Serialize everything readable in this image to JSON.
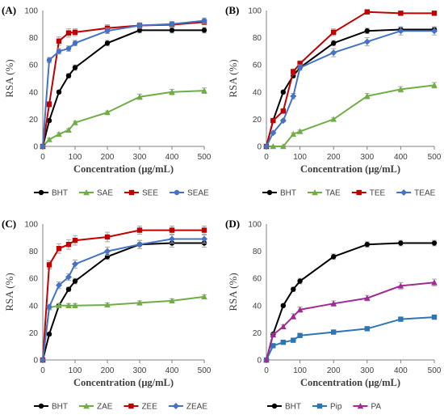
{
  "chart_data": [
    {
      "type": "line",
      "panel_label": "(A)",
      "x": [
        0,
        20,
        50,
        80,
        100,
        200,
        300,
        400,
        500
      ],
      "xlabel": "Concentration (μg/mL)",
      "ylabel": "RSA (%)",
      "xlim": [
        0,
        500
      ],
      "ylim": [
        0,
        100
      ],
      "xticks": [
        "0",
        "100",
        "200",
        "300",
        "400",
        "500"
      ],
      "yticks": [
        "0",
        "20",
        "40",
        "60",
        "80",
        "100"
      ],
      "grid": false,
      "legend_position": "bottom",
      "series": [
        {
          "name": "BHT",
          "color": "#000000",
          "marker": "circle",
          "values": [
            0,
            19,
            40,
            52,
            58,
            76,
            85.5,
            85.5,
            85.5
          ],
          "errors": [
            0,
            1,
            1,
            1.5,
            2,
            2,
            2,
            2,
            2
          ]
        },
        {
          "name": "SAE",
          "color": "#70ad47",
          "marker": "triangle",
          "values": [
            0,
            5,
            9,
            12,
            17.5,
            25,
            36.5,
            40,
            41
          ],
          "errors": [
            0,
            1,
            1,
            1,
            1,
            1,
            2,
            2,
            2
          ]
        },
        {
          "name": "SEE",
          "color": "#c00000",
          "marker": "square",
          "values": [
            0,
            31,
            77.5,
            83.5,
            84,
            87,
            89,
            89.5,
            91.5
          ],
          "errors": [
            0,
            2,
            3,
            3,
            2.5,
            2.5,
            2,
            2,
            2
          ]
        },
        {
          "name": "SEAE",
          "color": "#4472c4",
          "marker": "circle",
          "values": [
            0,
            63.5,
            70,
            72,
            76,
            85,
            89,
            90,
            92.5
          ],
          "errors": [
            0,
            2,
            2,
            2,
            2,
            2,
            2,
            2,
            2
          ]
        }
      ]
    },
    {
      "type": "line",
      "panel_label": "(B)",
      "x": [
        0,
        20,
        50,
        80,
        100,
        200,
        300,
        400,
        500
      ],
      "xlabel": "Concentration (μg/mL)",
      "ylabel": "RSA (%)",
      "xlim": [
        0,
        500
      ],
      "ylim": [
        0,
        100
      ],
      "xticks": [
        "0",
        "100",
        "200",
        "300",
        "400",
        "500"
      ],
      "yticks": [
        "0",
        "20",
        "40",
        "60",
        "80",
        "100"
      ],
      "grid": false,
      "legend_position": "bottom",
      "series": [
        {
          "name": "BHT",
          "color": "#000000",
          "marker": "circle",
          "values": [
            0,
            19,
            40,
            52,
            58,
            76,
            85,
            86,
            86
          ],
          "errors": [
            0,
            1,
            1,
            1.5,
            2,
            2,
            2,
            2,
            2
          ]
        },
        {
          "name": "TAE",
          "color": "#70ad47",
          "marker": "triangle",
          "values": [
            0,
            0,
            0,
            9,
            11,
            20,
            37,
            42,
            45
          ],
          "errors": [
            0,
            0.5,
            0.5,
            1,
            1,
            1,
            2,
            2,
            2
          ]
        },
        {
          "name": "TEE",
          "color": "#c00000",
          "marker": "square",
          "values": [
            0,
            19,
            26,
            55,
            61,
            84,
            99,
            98,
            98
          ],
          "errors": [
            0,
            1,
            1.5,
            2,
            2,
            2.5,
            1.5,
            1,
            1
          ]
        },
        {
          "name": "TEAE",
          "color": "#4472c4",
          "marker": "diamond",
          "values": [
            0,
            10,
            19,
            37,
            58,
            69,
            77,
            85,
            85
          ],
          "errors": [
            0,
            1,
            1,
            2,
            2,
            3,
            3,
            3,
            3
          ]
        }
      ]
    },
    {
      "type": "line",
      "panel_label": "(C)",
      "x": [
        0,
        20,
        50,
        80,
        100,
        200,
        300,
        400,
        500
      ],
      "xlabel": "Concentration (μg/mL)",
      "ylabel": "RSA (%)",
      "xlim": [
        0,
        500
      ],
      "ylim": [
        0,
        100
      ],
      "xticks": [
        "0",
        "100",
        "200",
        "300",
        "400",
        "500"
      ],
      "yticks": [
        "0",
        "20",
        "40",
        "60",
        "80",
        "100"
      ],
      "grid": false,
      "legend_position": "bottom",
      "series": [
        {
          "name": "BHT",
          "color": "#000000",
          "marker": "circle",
          "values": [
            0,
            19,
            40,
            52,
            58,
            76,
            85,
            86,
            86
          ],
          "errors": [
            0,
            1,
            1,
            1.5,
            2,
            2,
            3,
            3,
            3
          ]
        },
        {
          "name": "ZAE",
          "color": "#70ad47",
          "marker": "triangle",
          "values": [
            0,
            38.5,
            40,
            40,
            40,
            40.5,
            42,
            43.5,
            46.5
          ],
          "errors": [
            0,
            1.5,
            1.5,
            1.5,
            1.5,
            1.5,
            1.5,
            1.5,
            1.5
          ]
        },
        {
          "name": "ZEE",
          "color": "#c00000",
          "marker": "square",
          "values": [
            0,
            70,
            82,
            85,
            88,
            90.5,
            95.5,
            95.5,
            95.5
          ],
          "errors": [
            0,
            3,
            3.5,
            3.5,
            3.5,
            3.5,
            3,
            3,
            3
          ]
        },
        {
          "name": "ZEAE",
          "color": "#4472c4",
          "marker": "diamond",
          "values": [
            0,
            39,
            55,
            61,
            70.5,
            80,
            85,
            89,
            89
          ],
          "errors": [
            0,
            2,
            2.5,
            2.5,
            3,
            3,
            3,
            3,
            3
          ]
        }
      ]
    },
    {
      "type": "line",
      "panel_label": "(D)",
      "x": [
        0,
        20,
        50,
        80,
        100,
        200,
        300,
        400,
        500
      ],
      "xlabel": "Concentration (μg/mL)",
      "ylabel": "RSA (%)",
      "xlim": [
        0,
        500
      ],
      "ylim": [
        0,
        100
      ],
      "xticks": [
        "0",
        "100",
        "200",
        "300",
        "400",
        "500"
      ],
      "yticks": [
        "0",
        "20",
        "40",
        "60",
        "80",
        "100"
      ],
      "grid": false,
      "legend_position": "bottom",
      "series": [
        {
          "name": "BHT",
          "color": "#000000",
          "marker": "circle",
          "values": [
            0,
            19,
            40,
            52,
            58,
            76,
            85,
            86,
            86
          ],
          "errors": [
            0,
            1,
            1,
            1.5,
            2,
            2,
            2,
            2,
            2
          ]
        },
        {
          "name": "Pip",
          "color": "#2e75b6",
          "marker": "square",
          "values": [
            0,
            10.5,
            13,
            14.5,
            18,
            20.5,
            23,
            30,
            31.5
          ],
          "errors": [
            0,
            1,
            1,
            1,
            1,
            1,
            1,
            1,
            1
          ]
        },
        {
          "name": "PA",
          "color": "#a02b93",
          "marker": "triangle",
          "values": [
            0,
            18.5,
            24.5,
            32,
            37,
            41.5,
            45.5,
            54.5,
            57
          ],
          "errors": [
            0,
            1,
            1.5,
            2,
            2,
            2,
            2,
            2.5,
            2.5
          ]
        }
      ]
    }
  ]
}
